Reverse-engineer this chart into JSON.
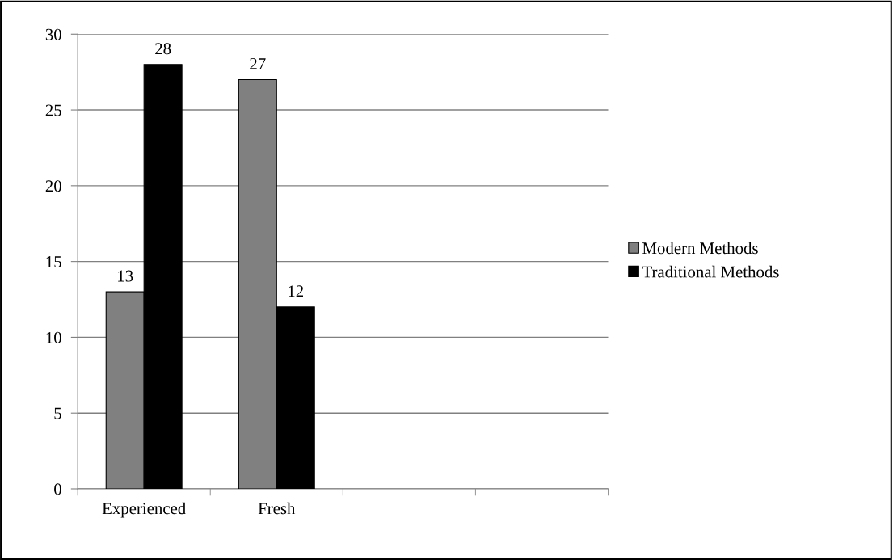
{
  "chart_data": {
    "type": "bar",
    "categories": [
      "Experienced",
      "Fresh",
      null,
      null
    ],
    "series": [
      {
        "name": "Modern Methods",
        "color": "#808080",
        "values": [
          13,
          27,
          null,
          null
        ]
      },
      {
        "name": "Traditional Methods",
        "color": "#000000",
        "values": [
          28,
          12,
          null,
          null
        ]
      }
    ],
    "ylim": [
      0,
      30
    ],
    "yticks": [
      0,
      5,
      10,
      15,
      20,
      25,
      30
    ],
    "grid": "y",
    "legend": "right",
    "data_labels": true
  }
}
